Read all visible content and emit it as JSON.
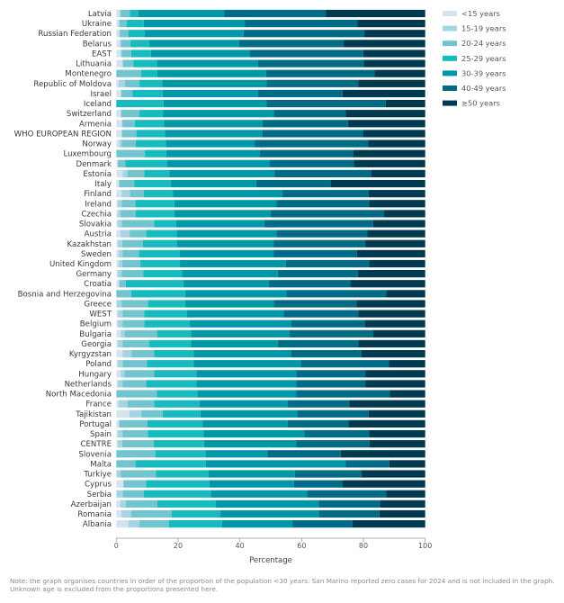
{
  "chart_data": {
    "type": "bar",
    "orientation": "horizontal",
    "stacked": true,
    "xlabel": "Percentage",
    "xlim": [
      0,
      100
    ],
    "xticks": [
      "0",
      "20",
      "40",
      "60",
      "80",
      "100"
    ],
    "grid": false,
    "legend_position": "top-right",
    "categories": [
      "Latvia",
      "Ukraine",
      "Russian Federation",
      "Belarus",
      "EAST",
      "Lithuania",
      "Montenegro",
      "Republic of Moldova",
      "Israel",
      "Iceland",
      "Switzerland",
      "Armenia",
      "WHO EUROPEAN REGION",
      "Norway",
      "Luxembourg",
      "Denmark",
      "Estonia",
      "Italy",
      "Finland",
      "Ireland",
      "Czechia",
      "Slovakia",
      "Austria",
      "Kazakhstan",
      "Sweden",
      "United Kingdom",
      "Germany",
      "Croatia",
      "Bosnia and Herzegovina",
      "Greece",
      "WEST",
      "Belgium",
      "Bulgaria",
      "Georgia",
      "Kyrgyzstan",
      "Poland",
      "Hungary",
      "Netherlands",
      "North Macedonia",
      "France",
      "Tajikistan",
      "Portugal",
      "Spain",
      "CENTRE",
      "Slovenia",
      "Malta",
      "Turkiye",
      "Cyprus",
      "Serbia",
      "Azerbaijan",
      "Romania",
      "Albania"
    ],
    "series": [
      {
        "name": "<15 years",
        "color": "#d4e3ed",
        "values": [
          1.0,
          0.7,
          0.9,
          1.2,
          1.4,
          1.9,
          0,
          0.7,
          1.4,
          0,
          1.4,
          1.8,
          1.6,
          0.9,
          0,
          0.5,
          2.1,
          0.9,
          1.7,
          0.5,
          0.5,
          0.5,
          1.4,
          0.5,
          0.7,
          0.7,
          0.5,
          0.9,
          0,
          0,
          0.5,
          0.5,
          1.4,
          0.5,
          2.1,
          0.5,
          1.4,
          0.5,
          0,
          0.7,
          4.3,
          0.9,
          0.5,
          0.5,
          0,
          0,
          0,
          2.3,
          0,
          1.2,
          1.7,
          3.9
        ]
      },
      {
        "name": "15-19 years",
        "color": "#a6d4e2",
        "values": [
          0.5,
          0.3,
          0.3,
          0.3,
          0.3,
          0.3,
          0,
          2.1,
          0.2,
          0,
          0.2,
          0.2,
          0.3,
          0.9,
          0,
          0,
          1.5,
          0,
          2.7,
          1.3,
          0.9,
          1.3,
          2.9,
          1.4,
          1.4,
          1.2,
          1.2,
          0,
          0,
          1.7,
          1.6,
          1.6,
          1.2,
          1.6,
          2.8,
          1.6,
          1.2,
          1.6,
          0,
          2.9,
          3.9,
          0,
          1.6,
          1.4,
          0,
          0,
          1.4,
          0,
          2.1,
          1.9,
          3.1,
          3.6
        ]
      },
      {
        "name": "20-24 years",
        "color": "#72c5cf",
        "values": [
          2.9,
          2.3,
          2.7,
          3.1,
          3.1,
          3.3,
          8.0,
          4.7,
          3.7,
          0,
          5.9,
          4.0,
          4.6,
          4.5,
          9.2,
          2.4,
          5.5,
          4.9,
          4.5,
          4.4,
          4.9,
          10.5,
          5.4,
          6.7,
          5.2,
          5.9,
          7.0,
          2.2,
          4.8,
          8.5,
          7.0,
          7.0,
          10.7,
          8.6,
          7.4,
          7.8,
          9.7,
          7.6,
          13.1,
          8.7,
          6.8,
          9.2,
          8.1,
          10.2,
          12.6,
          6.2,
          11.4,
          7.3,
          6.8,
          10.2,
          13.1,
          9.5
        ]
      },
      {
        "name": "25-29 years",
        "color": "#17babf",
        "values": [
          2.8,
          5.6,
          5.3,
          6.0,
          6.4,
          7.6,
          5.3,
          7.3,
          9.7,
          15.3,
          7.7,
          9.4,
          9.2,
          9.7,
          7.0,
          13.5,
          8.1,
          11.9,
          9.5,
          12.6,
          12.5,
          7.1,
          9.9,
          11.0,
          13.3,
          12.8,
          12.6,
          18.6,
          17.5,
          12.1,
          13.7,
          14.7,
          10.9,
          13.5,
          12.7,
          15.1,
          13.6,
          16.2,
          13.1,
          14.6,
          12.2,
          17.8,
          18.1,
          16.3,
          16.3,
          22.8,
          17.1,
          20.5,
          21.7,
          18.9,
          15.8,
          17.2
        ]
      },
      {
        "name": "30-39 years",
        "color": "#0097a9",
        "values": [
          27.8,
          32.8,
          32.0,
          29.1,
          31.9,
          32.8,
          35.2,
          33.8,
          30.9,
          33.3,
          35.8,
          31.9,
          31.5,
          28.9,
          30.2,
          33.3,
          34.0,
          27.6,
          35.4,
          33.1,
          31.1,
          28.5,
          32.3,
          31.3,
          30.3,
          34.3,
          31.0,
          27.7,
          32.7,
          28.7,
          31.4,
          32.7,
          31.9,
          28.1,
          31.5,
          34.7,
          32.3,
          32.3,
          32.1,
          28.6,
          31.4,
          27.6,
          32.6,
          29.9,
          20.0,
          45.2,
          27.9,
          27.4,
          31.2,
          33.3,
          31.8,
          22.8
        ]
      },
      {
        "name": "40-49 years",
        "color": "#006b86",
        "values": [
          32.8,
          36.4,
          39.1,
          33.9,
          36.8,
          34.2,
          35.1,
          29.7,
          27.3,
          38.6,
          23.3,
          27.7,
          32.6,
          36.7,
          30.2,
          27.2,
          31.3,
          24.1,
          27.9,
          29.9,
          36.8,
          35.2,
          29.4,
          29.7,
          27.0,
          26.9,
          25.9,
          26.3,
          32.4,
          26.7,
          24.1,
          23.9,
          27.1,
          26.1,
          22.9,
          28.6,
          22.4,
          22.4,
          30.3,
          19.9,
          23.1,
          19.7,
          20.9,
          23.7,
          23.8,
          14.2,
          21.6,
          15.8,
          25.6,
          19.9,
          19.7,
          19.4
        ]
      },
      {
        "name": "≥50 years",
        "color": "#003a50",
        "values": [
          32.2,
          21.9,
          19.7,
          26.4,
          20.1,
          19.9,
          16.4,
          21.7,
          26.8,
          12.8,
          25.7,
          25.0,
          20.2,
          18.4,
          23.4,
          23.1,
          17.5,
          30.6,
          18.3,
          18.2,
          13.3,
          16.9,
          18.7,
          19.4,
          22.1,
          18.2,
          21.8,
          24.3,
          12.6,
          22.3,
          21.7,
          19.6,
          16.8,
          21.6,
          20.6,
          11.7,
          19.4,
          19.4,
          11.4,
          24.6,
          18.3,
          24.8,
          18.2,
          18.0,
          27.3,
          11.6,
          20.6,
          26.7,
          12.6,
          14.6,
          14.8,
          23.6
        ]
      }
    ]
  },
  "note": "Note: the graph organises countries in order of the proportion of the population <30 years. San Marino reported zero cases for 2024 and is not included in the graph. Unknown age is excluded from the proportions presented here."
}
